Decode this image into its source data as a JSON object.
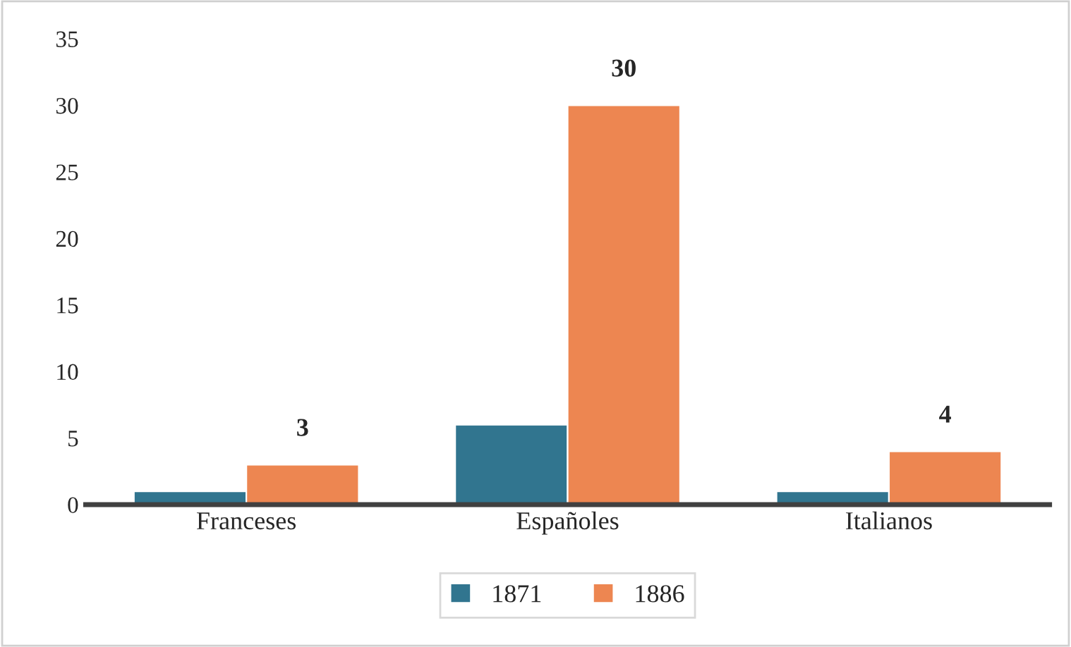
{
  "chart_data": {
    "type": "bar",
    "categories": [
      "Franceses",
      "Españoles",
      "Italianos"
    ],
    "series": [
      {
        "name": "1871",
        "color": "#31758f",
        "values": [
          1,
          6,
          1
        ]
      },
      {
        "name": "1886",
        "color": "#ed8651",
        "values": [
          3,
          30,
          4
        ],
        "value_labels": [
          "3",
          "30",
          "4"
        ]
      }
    ],
    "ylim": [
      0,
      35
    ],
    "yticks": [
      0,
      5,
      10,
      15,
      20,
      25,
      30,
      35
    ],
    "grid": false,
    "legend": "bottom"
  }
}
